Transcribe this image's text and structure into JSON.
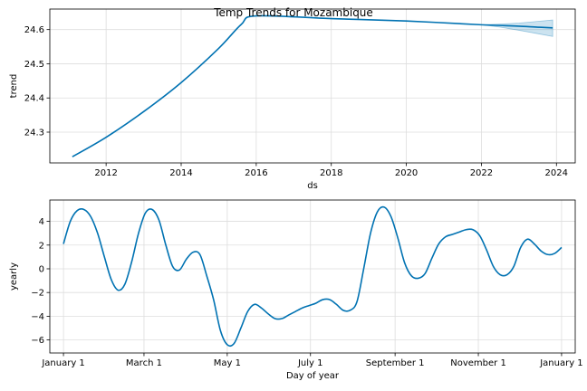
{
  "figure": {
    "title": "Temp Trends for Mozambique"
  },
  "colors": {
    "line": "#0072B2",
    "band": "#0072B2",
    "grid": "#dddddd",
    "axis": "#000000"
  },
  "chart_data": [
    {
      "type": "line",
      "name": "trend",
      "xlabel": "ds",
      "ylabel": "trend",
      "xlim": [
        2010.5,
        2024.5
      ],
      "ylim": [
        24.21,
        24.66
      ],
      "xticks": [
        2012,
        2014,
        2016,
        2018,
        2020,
        2022,
        2024
      ],
      "xtick_labels": [
        "2012",
        "2014",
        "2016",
        "2018",
        "2020",
        "2022",
        "2024"
      ],
      "yticks": [
        24.3,
        24.4,
        24.5,
        24.6
      ],
      "ytick_labels": [
        "24.3",
        "24.4",
        "24.5",
        "24.6"
      ],
      "grid": true,
      "x": [
        2011.1,
        2012.0,
        2013.0,
        2014.0,
        2015.0,
        2015.6,
        2016.0,
        2018.0,
        2020.0,
        2022.0,
        2022.5,
        2023.0,
        2023.5,
        2023.9
      ],
      "y": [
        24.228,
        24.285,
        24.36,
        24.445,
        24.545,
        24.615,
        24.64,
        24.632,
        24.625,
        24.614,
        24.612,
        24.61,
        24.607,
        24.605
      ],
      "uncertainty": {
        "x": [
          2022.0,
          2022.5,
          2023.0,
          2023.5,
          2023.9
        ],
        "lower": [
          24.614,
          24.607,
          24.598,
          24.588,
          24.58
        ],
        "upper": [
          24.614,
          24.616,
          24.619,
          24.624,
          24.628
        ]
      }
    },
    {
      "type": "line",
      "name": "yearly",
      "xlabel": "Day of year",
      "ylabel": "yearly",
      "xlim": [
        -10,
        375
      ],
      "ylim": [
        -7.1,
        5.8
      ],
      "xticks": [
        0,
        59,
        120,
        181,
        243,
        304,
        365
      ],
      "xtick_labels": [
        "January 1",
        "March 1",
        "May 1",
        "July 1",
        "September 1",
        "November 1",
        "January 1"
      ],
      "yticks": [
        -6,
        -4,
        -2,
        0,
        2,
        4
      ],
      "ytick_labels": [
        "−6",
        "−4",
        "−2",
        "0",
        "2",
        "4"
      ],
      "grid": true,
      "x": [
        0,
        5,
        10,
        15,
        20,
        25,
        30,
        35,
        40,
        45,
        50,
        55,
        60,
        65,
        70,
        75,
        80,
        85,
        90,
        95,
        100,
        105,
        110,
        115,
        120,
        125,
        130,
        135,
        140,
        145,
        150,
        155,
        160,
        165,
        170,
        175,
        180,
        185,
        190,
        195,
        200,
        205,
        210,
        215,
        220,
        225,
        230,
        235,
        240,
        245,
        250,
        255,
        260,
        265,
        270,
        275,
        280,
        285,
        290,
        295,
        300,
        305,
        310,
        315,
        320,
        325,
        330,
        335,
        340,
        345,
        350,
        355,
        360,
        365
      ],
      "y": [
        2.1,
        4.0,
        4.9,
        5.0,
        4.4,
        3.0,
        1.0,
        -0.9,
        -1.8,
        -1.3,
        0.6,
        3.0,
        4.7,
        5.0,
        4.1,
        2.0,
        0.2,
        -0.1,
        0.8,
        1.4,
        1.2,
        -0.6,
        -2.6,
        -5.2,
        -6.4,
        -6.3,
        -5.0,
        -3.6,
        -3.0,
        -3.3,
        -3.8,
        -4.2,
        -4.2,
        -3.9,
        -3.6,
        -3.3,
        -3.1,
        -2.9,
        -2.6,
        -2.6,
        -3.0,
        -3.5,
        -3.5,
        -2.8,
        0.0,
        3.0,
        4.8,
        5.2,
        4.4,
        2.6,
        0.5,
        -0.6,
        -0.8,
        -0.4,
        0.9,
        2.1,
        2.7,
        2.9,
        3.1,
        3.3,
        3.3,
        2.8,
        1.6,
        0.2,
        -0.5,
        -0.5,
        0.2,
        1.8,
        2.5,
        2.1,
        1.5,
        1.2,
        1.3,
        1.8
      ]
    }
  ]
}
